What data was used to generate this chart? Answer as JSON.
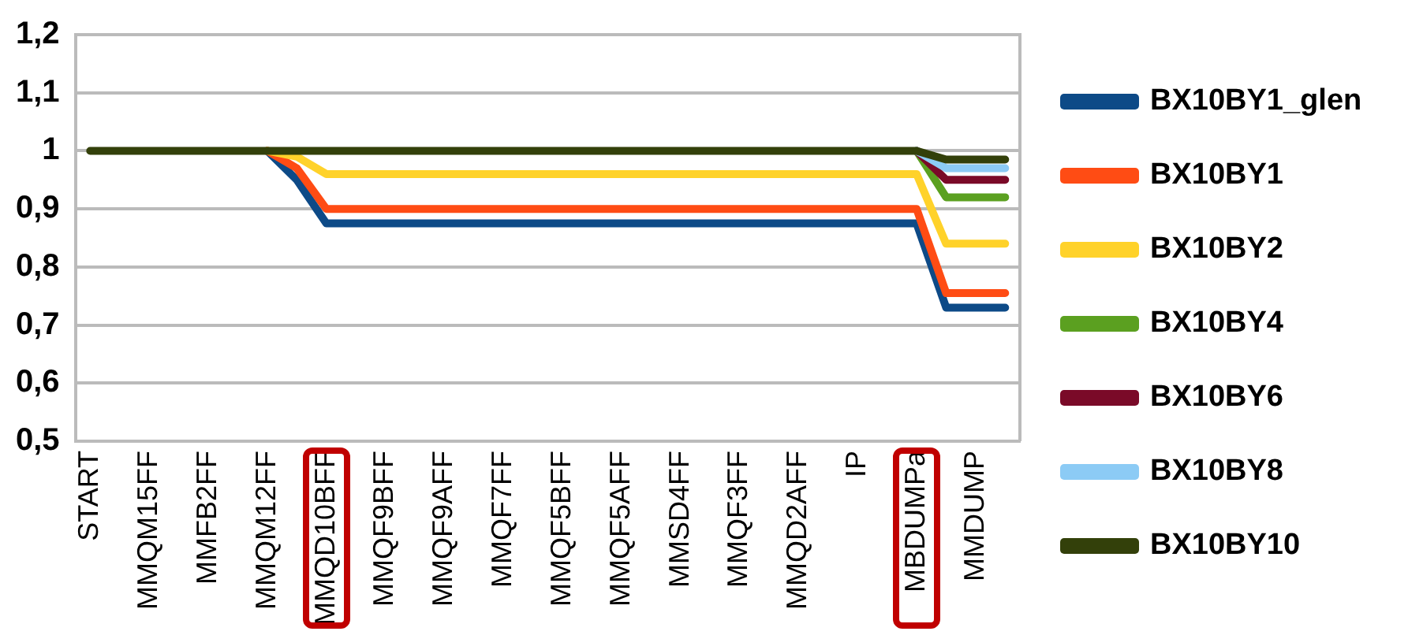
{
  "chart_data": {
    "type": "line",
    "categories": [
      "START",
      null,
      "MMQM15FF",
      null,
      "MMFB2FF",
      null,
      "MMQM12FF",
      null,
      "MMQD10BFF",
      null,
      "MMQF9BFF",
      null,
      "MMQF9AFF",
      null,
      "MMQF7FF",
      null,
      "MMQF5BFF",
      null,
      "MMQF5AFF",
      null,
      "MMSD4FF",
      null,
      "MMQF3FF",
      null,
      "MMQD2AFF",
      null,
      "IP",
      null,
      "MBDUMPa",
      null,
      "MMDUMP",
      null
    ],
    "series": [
      {
        "name": "BX10BY1_glen",
        "color": "#0d4a87",
        "values": [
          null,
          null,
          null,
          null,
          null,
          null,
          1,
          0.95,
          0.875,
          0.875,
          0.875,
          0.875,
          0.875,
          0.875,
          0.875,
          0.875,
          0.875,
          0.875,
          0.875,
          0.875,
          0.875,
          0.875,
          0.875,
          0.875,
          0.875,
          0.875,
          0.875,
          0.875,
          0.875,
          0.73,
          0.73,
          0.73
        ]
      },
      {
        "name": "BX10BY1",
        "color": "#ff4c14",
        "values": [
          null,
          null,
          null,
          null,
          null,
          null,
          1,
          0.97,
          0.9,
          0.9,
          0.9,
          0.9,
          0.9,
          0.9,
          0.9,
          0.9,
          0.9,
          0.9,
          0.9,
          0.9,
          0.9,
          0.9,
          0.9,
          0.9,
          0.9,
          0.9,
          0.9,
          0.9,
          0.9,
          0.755,
          0.755,
          0.755
        ]
      },
      {
        "name": "BX10BY2",
        "color": "#ffd22a",
        "values": [
          null,
          null,
          null,
          null,
          null,
          null,
          1,
          0.99,
          0.96,
          0.96,
          0.96,
          0.96,
          0.96,
          0.96,
          0.96,
          0.96,
          0.96,
          0.96,
          0.96,
          0.96,
          0.96,
          0.96,
          0.96,
          0.96,
          0.96,
          0.96,
          0.96,
          0.96,
          0.96,
          0.84,
          0.84,
          0.84
        ]
      },
      {
        "name": "BX10BY4",
        "color": "#5ba020",
        "values": [
          null,
          null,
          null,
          null,
          null,
          null,
          null,
          null,
          null,
          null,
          null,
          null,
          null,
          null,
          null,
          null,
          null,
          null,
          null,
          null,
          null,
          null,
          null,
          null,
          null,
          null,
          null,
          null,
          1,
          0.92,
          0.92,
          0.92
        ]
      },
      {
        "name": "BX10BY6",
        "color": "#7a0a28",
        "values": [
          null,
          null,
          null,
          null,
          null,
          null,
          null,
          null,
          null,
          null,
          null,
          null,
          null,
          null,
          null,
          null,
          null,
          null,
          null,
          null,
          null,
          null,
          null,
          null,
          null,
          null,
          null,
          null,
          1,
          0.95,
          0.95,
          0.95
        ]
      },
      {
        "name": "BX10BY8",
        "color": "#8ccbf5",
        "values": [
          null,
          null,
          null,
          null,
          null,
          null,
          null,
          null,
          null,
          null,
          null,
          null,
          null,
          null,
          null,
          null,
          null,
          null,
          null,
          null,
          null,
          null,
          null,
          null,
          null,
          null,
          null,
          null,
          1,
          0.97,
          0.97,
          0.97
        ]
      },
      {
        "name": "BX10BY10",
        "color": "#33400a",
        "values": [
          1,
          1,
          1,
          1,
          1,
          1,
          1,
          1,
          1,
          1,
          1,
          1,
          1,
          1,
          1,
          1,
          1,
          1,
          1,
          1,
          1,
          1,
          1,
          1,
          1,
          1,
          1,
          1,
          1,
          0.985,
          0.985,
          0.985
        ]
      }
    ],
    "ylim": [
      0.5,
      1.2
    ],
    "yticks": [
      {
        "value": 0.5,
        "label": "0,5"
      },
      {
        "value": 0.6,
        "label": "0,6"
      },
      {
        "value": 0.7,
        "label": "0,7"
      },
      {
        "value": 0.8,
        "label": "0,8"
      },
      {
        "value": 0.9,
        "label": "0,9"
      },
      1,
      {
        "value": 1.1,
        "label": "1,1"
      },
      {
        "value": 1.2,
        "label": "1,2"
      }
    ],
    "grid": "y",
    "legend": "right",
    "marker": "none",
    "line_style": "solid"
  }
}
